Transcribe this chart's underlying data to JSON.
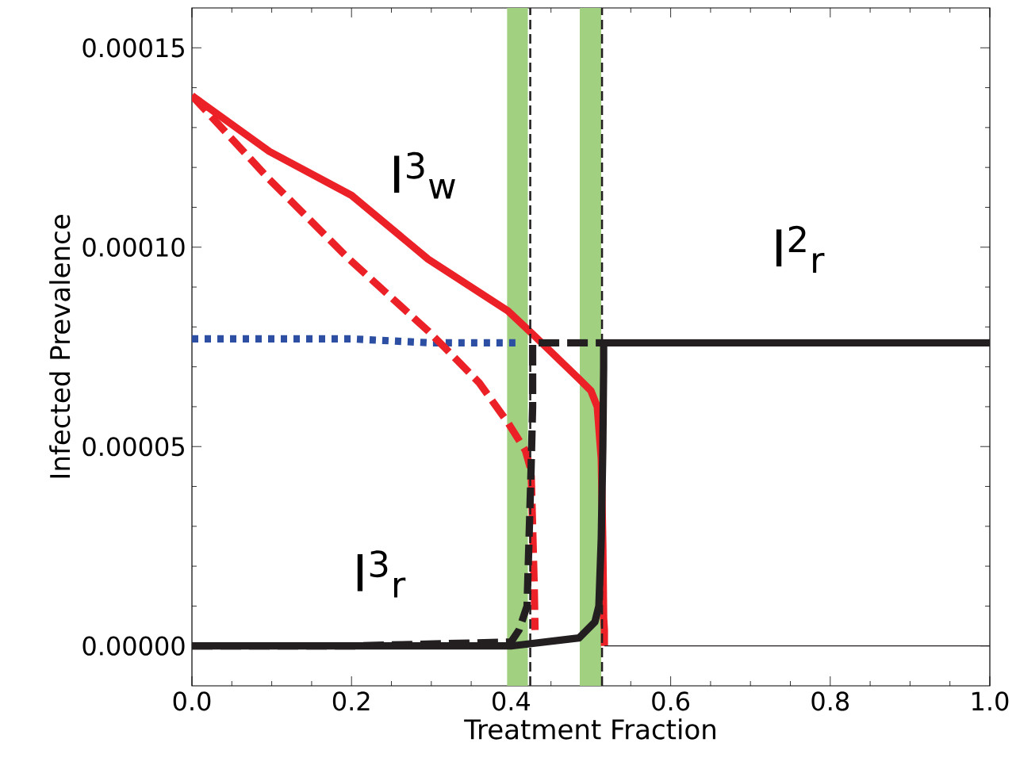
{
  "chart_data": {
    "type": "line",
    "xlabel": "Treatment  Fraction",
    "ylabel": "Infected  Prevalence",
    "xlim": [
      0,
      1
    ],
    "ylim": [
      -1e-05,
      0.00016
    ],
    "xticks": [
      {
        "value": 0,
        "label": "0.0"
      },
      {
        "value": 0.2,
        "label": "0.2"
      },
      {
        "value": 0.4,
        "label": "0.4"
      },
      {
        "value": 0.6,
        "label": "0.6"
      },
      {
        "value": 0.8,
        "label": "0.8"
      },
      {
        "value": 1,
        "label": "1.0"
      }
    ],
    "yticks": [
      {
        "value": 0,
        "label": "0.00000"
      },
      {
        "value": 5e-05,
        "label": "0.00005"
      },
      {
        "value": 0.0001,
        "label": "0.00010"
      },
      {
        "value": 0.00015,
        "label": "0.00015"
      }
    ],
    "marker": "none",
    "bands": [
      {
        "axis": "x",
        "from": 0.395,
        "to": 0.421,
        "color": "#a0d080"
      },
      {
        "axis": "x",
        "from": 0.486,
        "to": 0.513,
        "color": "#a0d080"
      }
    ],
    "series": [
      {
        "color": "#2c4fa3",
        "line_style": "dotted",
        "x": [
          0,
          0.1,
          0.2,
          0.3,
          0.41
        ],
        "values": [
          7.7e-05,
          7.7e-05,
          7.7e-05,
          7.6e-05,
          7.6e-05
        ]
      },
      {
        "color": "#ec2027",
        "line_style": "dashed",
        "x": [
          0,
          0.097,
          0.197,
          0.296,
          0.316,
          0.36,
          0.396,
          0.418,
          0.425,
          0.427,
          0.429,
          0.43
        ],
        "values": [
          0.000138,
          0.000117,
          9.7e-05,
          7.9e-05,
          7.5e-05,
          6.6e-05,
          5.6e-05,
          4.9e-05,
          4.4e-05,
          3e-05,
          1.5e-05,
          4e-06
        ]
      },
      {
        "color": "#ec2027",
        "line_style": "solid",
        "x": [
          0,
          0.097,
          0.2,
          0.296,
          0.396,
          0.428,
          0.485,
          0.5,
          0.508,
          0.513,
          0.515,
          0.516,
          0.517,
          0.517
        ],
        "values": [
          0.000138,
          0.000124,
          0.000113,
          9.7e-05,
          8.4e-05,
          7.8e-05,
          6.7e-05,
          6.4e-05,
          6e-05,
          4.7e-05,
          2.5e-05,
          7e-06,
          4e-06,
          0
        ]
      },
      {
        "color": "#231f20",
        "line_style": "dashed",
        "x": [
          0,
          0.2,
          0.4,
          0.41,
          0.42,
          0.425,
          0.427,
          0.427,
          0.515
        ],
        "values": [
          0,
          0,
          1e-06,
          4e-06,
          1e-05,
          4.4e-05,
          6e-05,
          7.6e-05,
          7.6e-05
        ]
      },
      {
        "color": "#231f20",
        "line_style": "solid",
        "x": [
          0,
          0.2,
          0.4,
          0.485,
          0.505,
          0.51,
          0.513,
          0.515,
          0.516,
          0.516,
          1
        ],
        "values": [
          0,
          0,
          0,
          2e-06,
          6e-06,
          1e-05,
          2.7e-05,
          5e-05,
          7e-05,
          7.6e-05,
          7.6e-05
        ]
      },
      {
        "color": "#231f20",
        "line_style": "solid",
        "x": [
          0.517,
          1
        ],
        "values": [
          0,
          0
        ]
      }
    ],
    "ref_lines": [
      {
        "axis": "x",
        "value": 0.424,
        "color": "#231f20",
        "line_style": "dashed"
      },
      {
        "axis": "x",
        "value": 0.514,
        "color": "#231f20",
        "line_style": "dashed"
      }
    ],
    "annotations": [
      "I$^{3}$$_{w}$",
      "I$^{2}$$_{r}$",
      "I$^{3}$$_{r}$"
    ]
  }
}
